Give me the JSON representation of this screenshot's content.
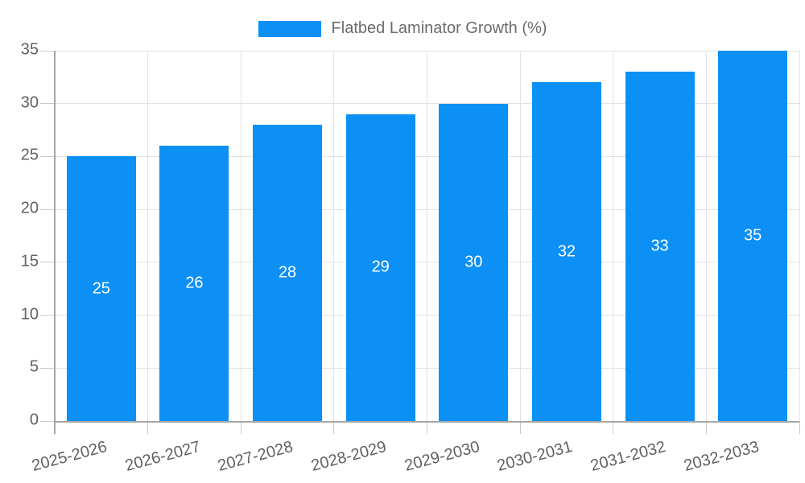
{
  "chart_data": {
    "type": "bar",
    "title": "Flatbed Laminator Growth (%)",
    "legend": {
      "label": "Flatbed Laminator Growth (%)",
      "position": "top"
    },
    "categories": [
      "2025-2026",
      "2026-2027",
      "2027-2028",
      "2028-2029",
      "2029-2030",
      "2030-2031",
      "2031-2032",
      "2032-2033"
    ],
    "series": [
      {
        "name": "Flatbed Laminator Growth (%)",
        "values": [
          25,
          26,
          28,
          29,
          30,
          32,
          33,
          35
        ]
      }
    ],
    "value_labels_shown": true,
    "xlabel": "",
    "ylabel": "",
    "ylim": [
      0,
      35
    ],
    "yticks": [
      0,
      5,
      10,
      15,
      20,
      25,
      30,
      35
    ],
    "grid": true,
    "colors": {
      "bar": "#0d90f5",
      "value_label": "#ffffff",
      "axis_tick_label": "#616161",
      "legend_text": "#6b6b6b",
      "gridline": "#e3e3e3",
      "axis_line": "#a6a6a6",
      "tick_mark": "#c9c9c9",
      "background": "#ffffff"
    }
  }
}
